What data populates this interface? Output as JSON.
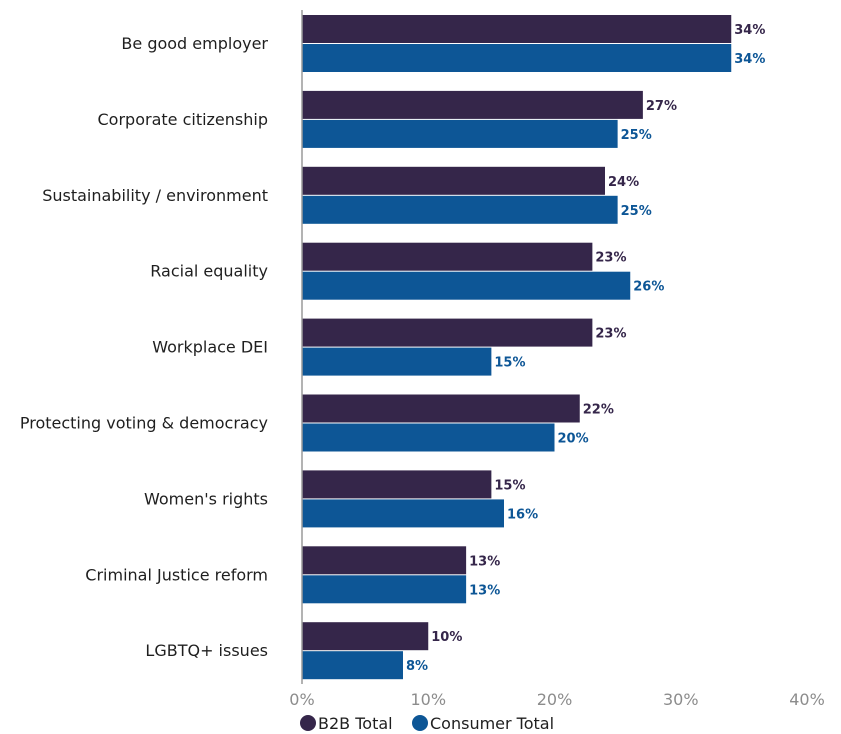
{
  "chart_data": {
    "type": "bar",
    "orientation": "horizontal",
    "categories": [
      "Be good employer",
      "Corporate citizenship",
      "Sustainability / environment",
      "Racial equality",
      "Workplace DEI",
      "Protecting voting & democracy",
      "Women's rights",
      "Criminal Justice reform",
      "LGBTQ+ issues"
    ],
    "series": [
      {
        "name": "B2B Total",
        "color": "#35264a",
        "values": [
          34,
          27,
          24,
          23,
          23,
          22,
          15,
          13,
          10
        ]
      },
      {
        "name": "Consumer Total",
        "color": "#0d5696",
        "values": [
          34,
          25,
          25,
          26,
          15,
          20,
          16,
          13,
          8
        ]
      }
    ],
    "xlim": [
      0,
      40
    ],
    "x_ticks": [
      "0%",
      "10%",
      "20%",
      "30%",
      "40%"
    ],
    "value_suffix": "%",
    "grid": false,
    "legend_position": "bottom-left"
  }
}
